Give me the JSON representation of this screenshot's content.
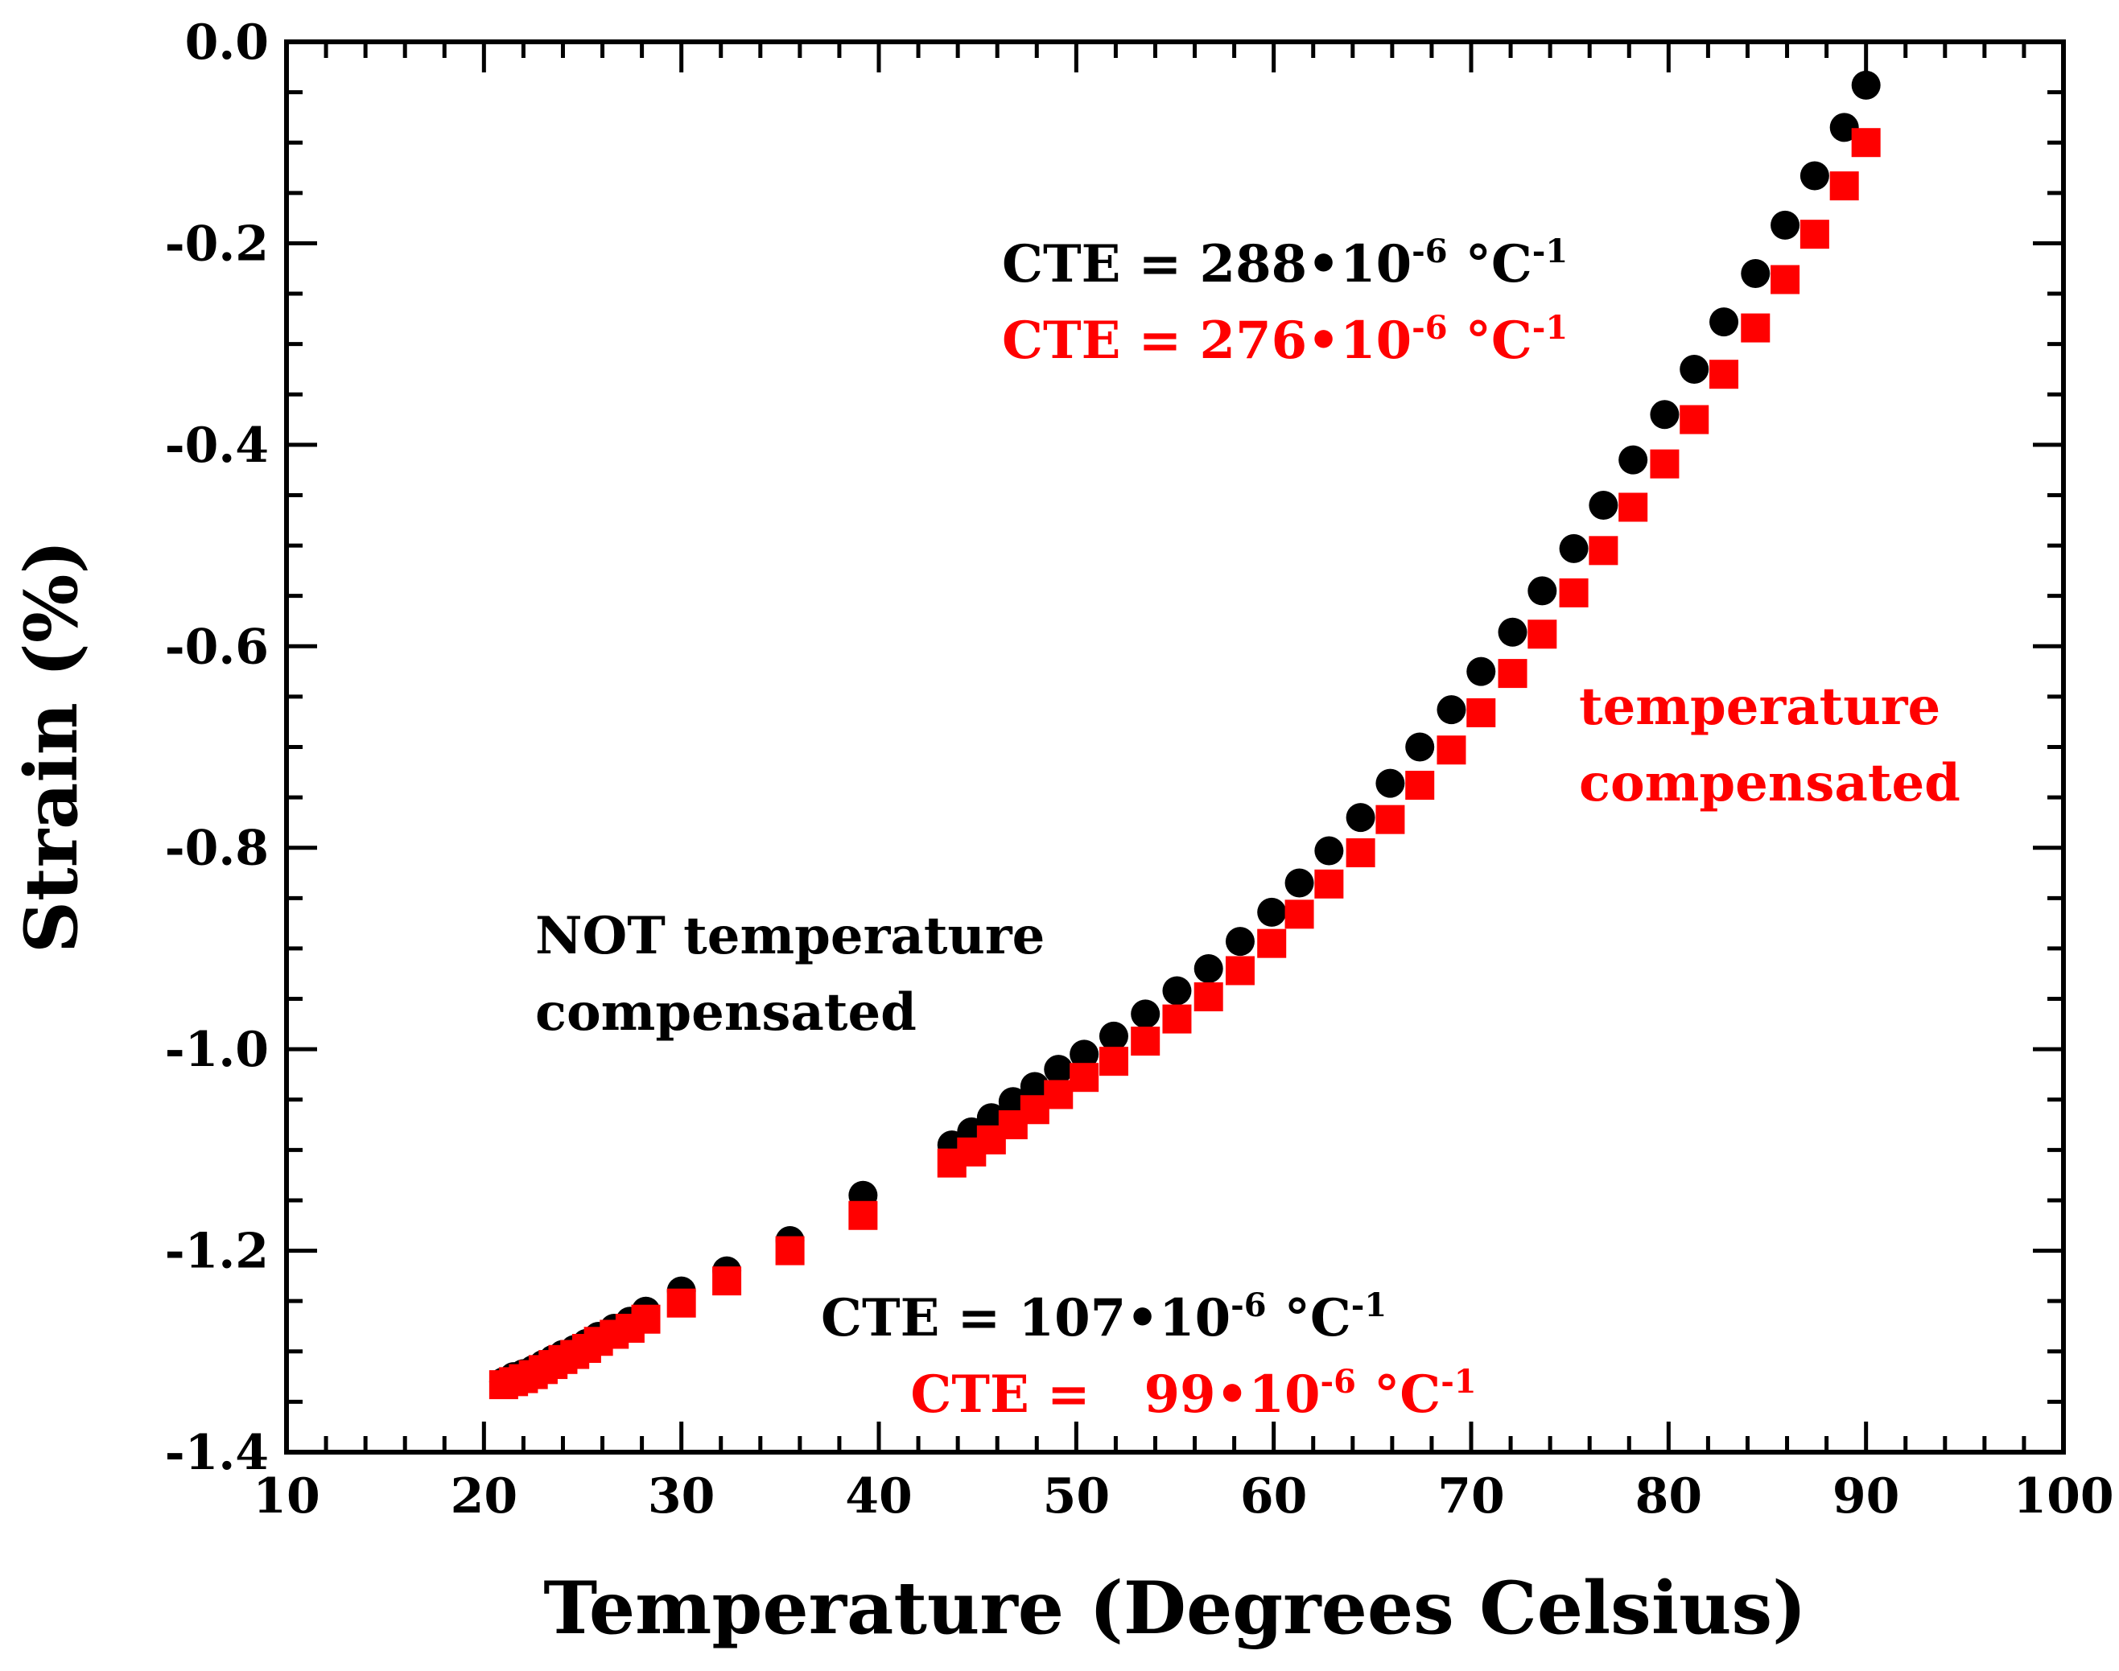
{
  "chart_data": {
    "type": "scatter",
    "xlabel": "Temperature (Degrees Celsius)",
    "ylabel": "Strain (%)",
    "xlim": [
      10,
      100
    ],
    "ylim": [
      -1.4,
      0.0
    ],
    "x_ticks": [
      "10",
      "20",
      "30",
      "40",
      "50",
      "60",
      "70",
      "80",
      "90",
      "100"
    ],
    "y_ticks": [
      "0.0",
      "-0.2",
      "-0.4",
      "-0.6",
      "-0.8",
      "-1.0",
      "-1.2",
      "-1.4"
    ],
    "grid": false,
    "colors": {
      "not_compensated": "#000000",
      "compensated": "#ff0000"
    },
    "series": [
      {
        "name": "NOT temperature compensated",
        "marker": "circle",
        "color": "#000000",
        "x": [
          21.0,
          21.5,
          22.0,
          22.5,
          23.0,
          23.5,
          24.0,
          24.6,
          25.2,
          25.8,
          26.6,
          27.4,
          28.2,
          30.0,
          32.3,
          35.5,
          39.2,
          43.7,
          44.7,
          45.7,
          46.8,
          47.9,
          49.1,
          50.4,
          51.9,
          53.5,
          55.1,
          56.7,
          58.3,
          59.9,
          61.3,
          62.8,
          64.4,
          65.9,
          67.4,
          69.0,
          70.5,
          72.1,
          73.6,
          75.2,
          76.7,
          78.2,
          79.8,
          81.3,
          82.8,
          84.4,
          85.9,
          87.4,
          88.9,
          90.0
        ],
        "y": [
          -1.33,
          -1.325,
          -1.322,
          -1.318,
          -1.313,
          -1.308,
          -1.303,
          -1.298,
          -1.292,
          -1.285,
          -1.277,
          -1.27,
          -1.26,
          -1.24,
          -1.22,
          -1.19,
          -1.145,
          -1.095,
          -1.082,
          -1.068,
          -1.052,
          -1.037,
          -1.02,
          -1.005,
          -0.987,
          -0.965,
          -0.942,
          -0.92,
          -0.893,
          -0.864,
          -0.835,
          -0.803,
          -0.77,
          -0.736,
          -0.7,
          -0.663,
          -0.625,
          -0.586,
          -0.545,
          -0.503,
          -0.46,
          -0.415,
          -0.37,
          -0.325,
          -0.278,
          -0.23,
          -0.182,
          -0.133,
          -0.085,
          -0.043
        ]
      },
      {
        "name": "temperature compensated",
        "marker": "square",
        "color": "#ff0000",
        "x": [
          21.0,
          21.5,
          22.0,
          22.5,
          23.0,
          23.5,
          24.0,
          24.6,
          25.2,
          25.8,
          26.6,
          27.4,
          28.2,
          30.0,
          32.3,
          35.5,
          39.2,
          43.7,
          44.7,
          45.7,
          46.8,
          47.9,
          49.1,
          50.4,
          51.9,
          53.5,
          55.1,
          56.7,
          58.3,
          59.9,
          61.3,
          62.8,
          64.4,
          65.9,
          67.4,
          69.0,
          70.5,
          72.1,
          73.6,
          75.2,
          76.7,
          78.2,
          79.8,
          81.3,
          82.8,
          84.4,
          85.9,
          87.4,
          88.9,
          90.0
        ],
        "y": [
          -1.333,
          -1.33,
          -1.327,
          -1.323,
          -1.318,
          -1.313,
          -1.308,
          -1.303,
          -1.297,
          -1.29,
          -1.283,
          -1.277,
          -1.268,
          -1.252,
          -1.23,
          -1.2,
          -1.165,
          -1.113,
          -1.102,
          -1.09,
          -1.075,
          -1.06,
          -1.045,
          -1.028,
          -1.012,
          -0.992,
          -0.97,
          -0.948,
          -0.922,
          -0.895,
          -0.866,
          -0.836,
          -0.805,
          -0.772,
          -0.738,
          -0.703,
          -0.666,
          -0.627,
          -0.588,
          -0.547,
          -0.505,
          -0.462,
          -0.419,
          -0.375,
          -0.33,
          -0.284,
          -0.236,
          -0.191,
          -0.143,
          -0.1
        ]
      }
    ],
    "annotations": [
      {
        "id": "cte_high_black",
        "base": "CTE = 288•10",
        "exp": "-6",
        "unit": " °C",
        "unit_exp": "-1",
        "color": "#000000"
      },
      {
        "id": "cte_high_red",
        "base": "CTE = 276•10",
        "exp": "-6",
        "unit": " °C",
        "unit_exp": "-1",
        "color": "#ff0000"
      },
      {
        "id": "cte_low_black",
        "base": "CTE = 107•10",
        "exp": "-6",
        "unit": " °C",
        "unit_exp": "-1",
        "color": "#000000"
      },
      {
        "id": "cte_low_red",
        "base": "CTE =   99•10",
        "exp": "-6",
        "unit": " °C",
        "unit_exp": "-1",
        "color": "#ff0000"
      }
    ],
    "labels": {
      "not_compensated_line1": "NOT temperature",
      "not_compensated_line2": "compensated",
      "compensated_line1": "temperature",
      "compensated_line2": "compensated"
    }
  }
}
